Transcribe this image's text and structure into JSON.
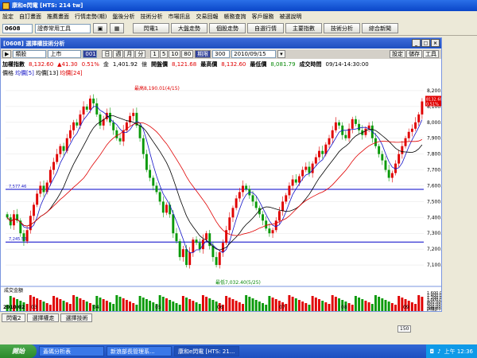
{
  "app": {
    "title": "康和e閃電 [HTS: 214 tw]"
  },
  "menu": [
    "設定",
    "自訂畫面",
    "推薦畫面",
    "行情走勢(期)",
    "盤後分析",
    "技術分析",
    "市場訊息",
    "交易回報",
    "帳務查詢",
    "客戶服務",
    "被選說明"
  ],
  "toolbar": {
    "code": "0608",
    "tools": "證券常用工具",
    "buttons": [
      "閃電1",
      "大盤走勢",
      "個股走勢",
      "自選行情",
      "主要指數",
      "技術分析",
      "綜合新聞"
    ]
  },
  "window": {
    "title": "[0608] 選擇權技術分析"
  },
  "controls": {
    "type": "類股",
    "market": "上市",
    "sel3": "001",
    "periods": [
      "日",
      "週",
      "月",
      "分"
    ],
    "nums": [
      "1",
      "5",
      "10",
      "80"
    ],
    "active_period": "期限",
    "count": "300",
    "date": "2010/09/15",
    "right_buttons": [
      "設定",
      "儲存",
      "工具"
    ]
  },
  "info": {
    "name": "加權指數",
    "price": "8,132.60",
    "change": "▲41.30",
    "pct": "0.51%",
    "amount_label": "金",
    "amount": "1,401.92",
    "amount_unit": "億",
    "open_label": "開盤價",
    "open": "8,121.68",
    "high_label": "最高價",
    "high": "8,132.60",
    "low_label": "最低價",
    "low": "8,081.79",
    "time_label": "成交時間",
    "time": "09/14-14:30:00"
  },
  "indicators": {
    "label": "價格",
    "ma1": "均價[5]",
    "ma2": "均價[13]",
    "ma3": "均價[24]"
  },
  "volume_label": "成交金額",
  "bottom_tabs": [
    "閃電2",
    "選擇權走",
    "選擇技術"
  ],
  "status_bar": {
    "left": "2010/02",
    "zoom": "150"
  },
  "taskbar": {
    "start": "開始",
    "tasks": [
      "蓋碼分析表",
      "新浪部長管理系...",
      "康和e閃電 [HTS: 21..."
    ],
    "clock": "上午 12:36"
  },
  "colors": {
    "up": "#e00000",
    "down": "#0a9a0a",
    "ma5": "#1515c8",
    "ma13": "#000000",
    "ma24": "#e00000",
    "hline": "#0000c8"
  },
  "chart_data": {
    "type": "candlestick",
    "x_ticks": [
      "03",
      "04",
      "05",
      "06",
      "07",
      "08",
      "09"
    ],
    "x_start_label": "2010/02",
    "price_axis": {
      "ticks": [
        "8,200.00",
        "8,100.00",
        "8,000.00",
        "7,900.00",
        "7,800.00",
        "7,700.00",
        "7,600.00",
        "7,500.00",
        "7,400.00",
        "7,300.00",
        "7,200.00",
        "7,100.00"
      ],
      "ylim": [
        7000,
        8250
      ]
    },
    "volume_axis": {
      "ticks": [
        "1,600,000",
        "1,400,000",
        "1,200,000",
        "1,000,000",
        "800,000",
        "600,000",
        "400,000",
        "200,000"
      ],
      "unit": "[x億]"
    },
    "annotations": {
      "high": "最高8,190.01(4/15)",
      "low": "最低7,032.40(5/25)",
      "last_price": "8132.60",
      "last_pct": "0.51%",
      "level1": "7,577.46",
      "level2": "7,245.53"
    },
    "horizontal_lines": [
      7577,
      7245
    ],
    "close_series": [
      7400,
      7350,
      7420,
      7380,
      7300,
      7250,
      7320,
      7410,
      7480,
      7550,
      7600,
      7560,
      7620,
      7700,
      7750,
      7800,
      7850,
      7820,
      7900,
      7950,
      8000,
      7980,
      8050,
      8100,
      8080,
      8150,
      8120,
      8050,
      7980,
      8020,
      8060,
      8000,
      7950,
      7900,
      7880,
      7950,
      8000,
      8040,
      8060,
      7980,
      7900,
      7800,
      7700,
      7650,
      7600,
      7560,
      7500,
      7430,
      7480,
      7420,
      7300,
      7250,
      7150,
      7200,
      7100,
      7180,
      7260,
      7240,
      7200,
      7260,
      7300,
      7220,
      7150,
      7100,
      7180,
      7240,
      7320,
      7400,
      7460,
      7520,
      7560,
      7600,
      7580,
      7540,
      7500,
      7460,
      7420,
      7380,
      7330,
      7300,
      7320,
      7380,
      7440,
      7500,
      7540,
      7600,
      7640,
      7620,
      7660,
      7700,
      7720,
      7680,
      7740,
      7780,
      7820,
      7800,
      7860,
      7900,
      7950,
      8000,
      7980,
      7920,
      7900,
      7960,
      8020,
      7990,
      7950,
      7920,
      7960,
      7980,
      7900,
      7850,
      7800,
      7760,
      7700,
      7650,
      7680,
      7740,
      7800,
      7850,
      7900,
      7940,
      7960,
      8000,
      8050,
      8132
    ]
  }
}
